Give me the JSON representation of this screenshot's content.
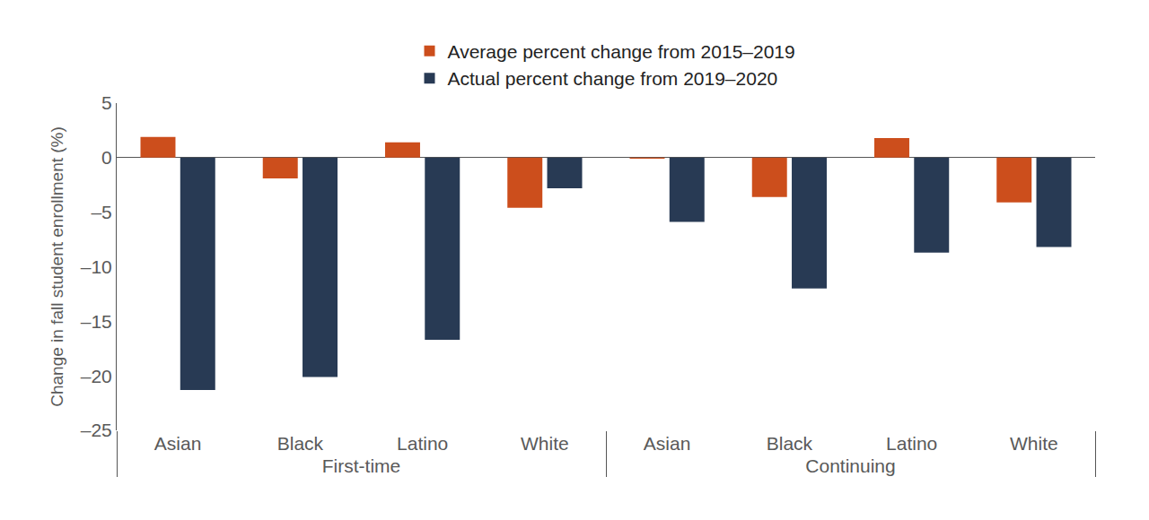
{
  "chart_data": {
    "type": "bar",
    "ylabel": "Change in fall student enrollment (%)",
    "categories": [
      "Asian",
      "Black",
      "Latino",
      "White",
      "Asian",
      "Black",
      "Latino",
      "White"
    ],
    "group_labels": [
      "First-time",
      "First-time",
      "First-time",
      "First-time",
      "Continuing",
      "Continuing",
      "Continuing",
      "Continuing"
    ],
    "series": [
      {
        "name": "Average percent change from 2015–2019",
        "color": "#cc4e1c",
        "values": [
          1.9,
          -1.9,
          1.4,
          -4.6,
          -0.1,
          -3.6,
          1.8,
          -4.1
        ]
      },
      {
        "name": "Actual percent change from 2019–2020",
        "color": "#283a54",
        "values": [
          -21.3,
          -20.1,
          -16.7,
          -2.8,
          -5.9,
          -12.0,
          -8.7,
          -8.2
        ]
      }
    ],
    "ylim": [
      -25,
      5
    ],
    "yticks": [
      5,
      0,
      {
        "value": -5,
        "label": "–5"
      },
      {
        "value": -10,
        "label": "–10"
      },
      {
        "value": -15,
        "label": "–15"
      },
      {
        "value": -20,
        "label": "–20"
      },
      {
        "value": -25,
        "label": "–25"
      }
    ],
    "grid": false,
    "legend": "top"
  }
}
